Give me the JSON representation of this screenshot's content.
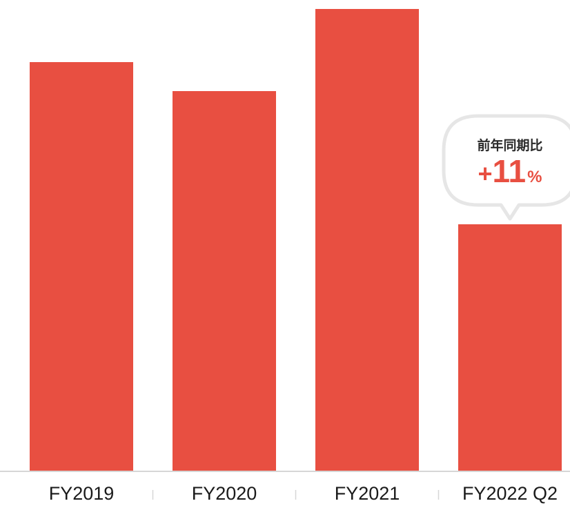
{
  "chart_data": {
    "type": "bar",
    "categories": [
      "FY2019",
      "FY2020",
      "FY2021",
      "FY2022 Q2"
    ],
    "values": [
      592,
      550,
      669,
      357
    ],
    "ylim": [
      0,
      680
    ],
    "grid": false,
    "colors": {
      "bar": "#e84f41",
      "axis": "#d6d6d6",
      "callout_border": "#e6e6e6",
      "callout_value": "#e84f41"
    },
    "annotation": {
      "category": "FY2022 Q2",
      "title": "前年同期比",
      "value_sign": "+",
      "value_number": "11",
      "value_unit": "%"
    }
  }
}
